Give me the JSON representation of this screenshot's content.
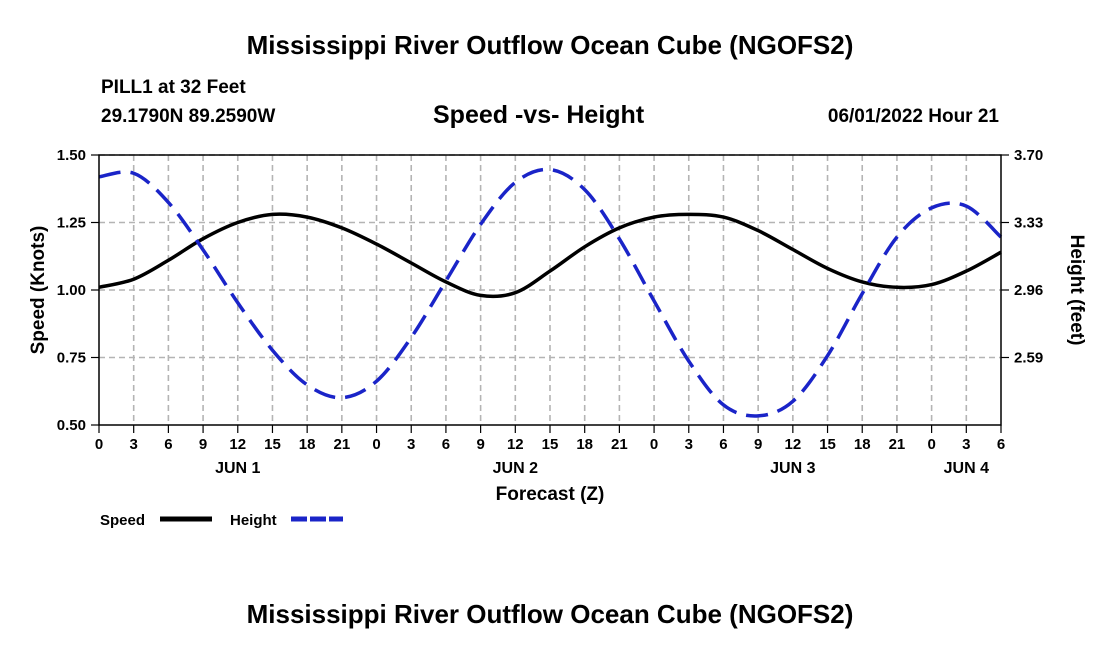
{
  "page": {
    "title_top": "Mississippi River Outflow Ocean Cube (NGOFS2)",
    "title_bottom": "Mississippi River Outflow Ocean Cube (NGOFS2)",
    "station": "PILL1 at 32 Feet",
    "coordinates": "29.1790N  89.2590W",
    "subtitle": "Speed -vs- Height",
    "datetime": "06/01/2022 Hour 21"
  },
  "colors": {
    "speed": "#000000",
    "height": "#1a24c8",
    "grid": "#b4b4b4"
  },
  "chart_data": {
    "type": "line",
    "title": "Speed -vs- Height",
    "xlabel": "Forecast (Z)",
    "ylabel": "Speed (Knots)",
    "y2label": "Height (feet)",
    "xlim": [
      0,
      78
    ],
    "ylim": [
      0.5,
      1.5
    ],
    "y2lim": [
      2.22,
      3.7
    ],
    "x_ticks": [
      0,
      3,
      6,
      9,
      12,
      15,
      18,
      21,
      24,
      27,
      30,
      33,
      36,
      39,
      42,
      45,
      48,
      51,
      54,
      57,
      60,
      63,
      66,
      69,
      72,
      75,
      78
    ],
    "x_tick_labels": [
      "0",
      "3",
      "6",
      "9",
      "12",
      "15",
      "18",
      "21",
      "0",
      "3",
      "6",
      "9",
      "12",
      "15",
      "18",
      "21",
      "0",
      "3",
      "6",
      "9",
      "12",
      "15",
      "18",
      "21",
      "0",
      "3",
      "6"
    ],
    "y_ticks": [
      0.5,
      0.75,
      1.0,
      1.25,
      1.5
    ],
    "y_tick_labels": [
      "0.50",
      "0.75",
      "1.00",
      "1.25",
      "1.50"
    ],
    "y2_ticks": [
      2.59,
      2.96,
      3.33,
      3.7
    ],
    "y2_tick_labels": [
      "2.59",
      "2.96",
      "3.33",
      "3.70"
    ],
    "date_labels": [
      {
        "x": 12,
        "label": "JUN 1"
      },
      {
        "x": 36,
        "label": "JUN 2"
      },
      {
        "x": 60,
        "label": "JUN 3"
      },
      {
        "x": 75,
        "label": "JUN 4"
      }
    ],
    "grid": true,
    "series": [
      {
        "name": "Speed",
        "axis": "left",
        "style": "solid",
        "x": [
          0,
          3,
          6,
          9,
          12,
          15,
          18,
          21,
          24,
          27,
          30,
          33,
          36,
          39,
          42,
          45,
          48,
          51,
          54,
          57,
          60,
          63,
          66,
          69,
          72,
          75,
          78
        ],
        "values": [
          1.01,
          1.04,
          1.11,
          1.19,
          1.25,
          1.28,
          1.27,
          1.23,
          1.17,
          1.1,
          1.03,
          0.98,
          0.99,
          1.07,
          1.16,
          1.23,
          1.27,
          1.28,
          1.27,
          1.22,
          1.15,
          1.08,
          1.03,
          1.01,
          1.02,
          1.07,
          1.14
        ]
      },
      {
        "name": "Height",
        "axis": "right",
        "style": "dashed",
        "x": [
          0,
          3,
          6,
          9,
          12,
          15,
          18,
          21,
          24,
          27,
          30,
          33,
          36,
          39,
          42,
          45,
          48,
          51,
          54,
          57,
          60,
          63,
          66,
          69,
          72,
          75,
          78
        ],
        "values": [
          3.58,
          3.6,
          3.44,
          3.18,
          2.89,
          2.63,
          2.44,
          2.37,
          2.46,
          2.7,
          3.01,
          3.32,
          3.55,
          3.62,
          3.51,
          3.24,
          2.9,
          2.57,
          2.33,
          2.27,
          2.35,
          2.6,
          2.94,
          3.25,
          3.41,
          3.42,
          3.25
        ]
      }
    ],
    "legend": [
      {
        "label": "Speed",
        "style": "solid"
      },
      {
        "label": "Height",
        "style": "dashed"
      }
    ]
  }
}
